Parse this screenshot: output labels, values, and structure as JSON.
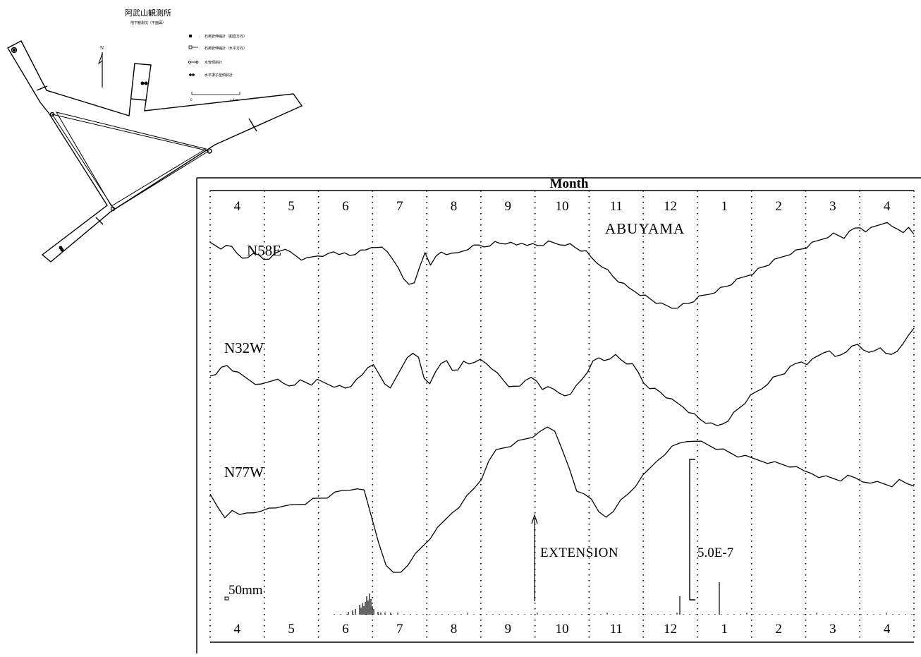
{
  "map": {
    "title": "阿武山観測所",
    "subtitle": "地下観測坑（平面図）",
    "legend": [
      {
        "symbol": "square",
        "label": "石英管伸縮計（鉛直方向）"
      },
      {
        "symbol": "square-line",
        "label": "石英管伸縮計（水平方向）"
      },
      {
        "symbol": "circle-line",
        "label": "水管傾斜計"
      },
      {
        "symbol": "double-dot",
        "label": "水平振子型傾斜計"
      }
    ],
    "north_label": "N",
    "scale": {
      "start": "0",
      "end": "1 0 m"
    }
  },
  "chart_data": {
    "type": "line",
    "title": "ABUYAMA",
    "xlabel": "Month",
    "ylabel": "",
    "months": [
      "4",
      "5",
      "6",
      "7",
      "8",
      "9",
      "10",
      "11",
      "12",
      "1",
      "2",
      "3",
      "4"
    ],
    "x_range_months": [
      0,
      13
    ],
    "grid": "vertical dotted lines at month boundaries",
    "series": [
      {
        "name": "N58E",
        "offset": [
          8,
          5,
          2,
          9,
          3,
          -5,
          -10,
          -14,
          -6,
          -6,
          -11,
          -15,
          -5,
          0,
          -2,
          -4,
          -8,
          -12,
          -13,
          -10,
          -7,
          -12,
          -6,
          -2,
          -4,
          -6,
          -8,
          -5,
          -3,
          -1,
          4,
          6,
          2,
          -3,
          -12,
          -28,
          -42,
          -48,
          -44,
          -26,
          -4,
          -20,
          -12,
          -4,
          -6,
          -2,
          -6,
          -2,
          2,
          4,
          6,
          5,
          8,
          10,
          9,
          10,
          8,
          6,
          10,
          9,
          7,
          6,
          8,
          10,
          9,
          8,
          9,
          7,
          3,
          0,
          -4,
          -12,
          -18,
          -22,
          -30,
          -38,
          -44,
          -50,
          -55,
          -58,
          -62,
          -66,
          -70,
          -74,
          -78,
          -80,
          -82,
          -80,
          -78,
          -76,
          -72,
          -68,
          -65,
          -62,
          -58,
          -55,
          -52,
          -48,
          -44,
          -40,
          -36,
          -32,
          -28,
          -24,
          -20,
          -16,
          -12,
          -8,
          -4,
          -2,
          1,
          4,
          8,
          12,
          16,
          20,
          22,
          20,
          18,
          24,
          30,
          32,
          28,
          30,
          34,
          38,
          36,
          32,
          30,
          27,
          30,
          22
        ]
      },
      {
        "name": "N32W",
        "offset": [
          -4,
          0,
          6,
          10,
          4,
          -2,
          -6,
          -10,
          -14,
          -18,
          -14,
          -10,
          -12,
          -16,
          -18,
          -15,
          -12,
          -14,
          -16,
          -12,
          -14,
          -16,
          -18,
          -20,
          -22,
          -18,
          -12,
          -4,
          8,
          14,
          -4,
          -16,
          -20,
          -10,
          6,
          22,
          30,
          20,
          -8,
          -14,
          -2,
          12,
          18,
          6,
          2,
          16,
          14,
          12,
          18,
          14,
          8,
          -2,
          -10,
          -18,
          -22,
          -20,
          -10,
          -4,
          -14,
          -24,
          -18,
          -26,
          -30,
          -32,
          -28,
          -20,
          -10,
          2,
          14,
          20,
          18,
          22,
          24,
          18,
          14,
          10,
          0,
          -14,
          -20,
          -24,
          -28,
          -34,
          -40,
          -44,
          -48,
          -54,
          -60,
          -66,
          -70,
          -74,
          -76,
          -72,
          -66,
          -58,
          -50,
          -42,
          -34,
          -28,
          -22,
          -14,
          -8,
          -4,
          0,
          6,
          12,
          16,
          14,
          18,
          24,
          30,
          28,
          22,
          26,
          32,
          36,
          40,
          34,
          26,
          30,
          36,
          30,
          24,
          30,
          42,
          50,
          62
        ]
      },
      {
        "name": "N77W",
        "offset": [
          -16,
          -32,
          -46,
          -40,
          -44,
          -40,
          -38,
          -40,
          -34,
          -32,
          -34,
          -30,
          -28,
          -26,
          -22,
          -20,
          -18,
          -14,
          -10,
          -8,
          -4,
          -10,
          -46,
          -82,
          -118,
          -126,
          -124,
          -112,
          -100,
          -88,
          -76,
          -64,
          -52,
          -40,
          -30,
          -18,
          -6,
          8,
          30,
          48,
          52,
          56,
          60,
          64,
          68,
          72,
          80,
          76,
          52,
          20,
          -10,
          -12,
          -24,
          -40,
          -46,
          -36,
          -24,
          -14,
          -2,
          10,
          22,
          34,
          44,
          52,
          58,
          62,
          58,
          60,
          56,
          52,
          48,
          44,
          40,
          38,
          36,
          34,
          32,
          30,
          28,
          26,
          22,
          18,
          16,
          12,
          10,
          8,
          6,
          10,
          8,
          4,
          4,
          2,
          0,
          -2,
          4,
          0,
          -2
        ]
      }
    ],
    "spikes": "lower strip of small vertical bars (rainfall record)",
    "annotations": [
      "EXTENSION",
      "5.0E-7",
      "50mm"
    ]
  }
}
